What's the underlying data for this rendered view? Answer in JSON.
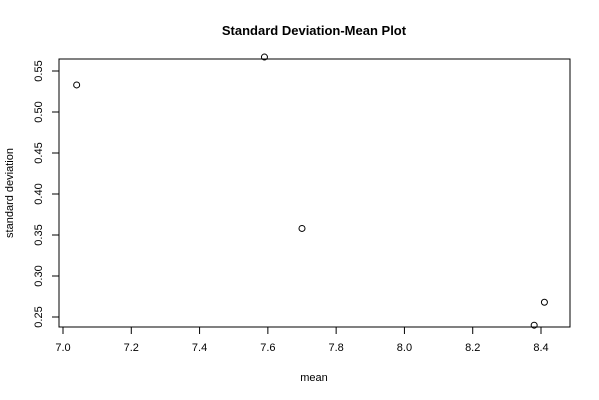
{
  "chart_data": {
    "type": "scatter",
    "title": "Standard Deviation-Mean Plot",
    "xlabel": "mean",
    "ylabel": "standard deviation",
    "xlim": [
      7.0,
      8.42
    ],
    "ylim": [
      0.24,
      0.57
    ],
    "xticks": [
      "7.0",
      "7.2",
      "7.4",
      "7.6",
      "7.8",
      "8.0",
      "8.2",
      "8.4"
    ],
    "yticks": [
      "0.25",
      "0.30",
      "0.35",
      "0.40",
      "0.45",
      "0.50",
      "0.55"
    ],
    "points": [
      {
        "x": 7.04,
        "y": 0.533
      },
      {
        "x": 7.59,
        "y": 0.567
      },
      {
        "x": 7.7,
        "y": 0.358
      },
      {
        "x": 8.38,
        "y": 0.24
      },
      {
        "x": 8.41,
        "y": 0.268
      }
    ],
    "grid": false,
    "point_style": "open-circle"
  }
}
